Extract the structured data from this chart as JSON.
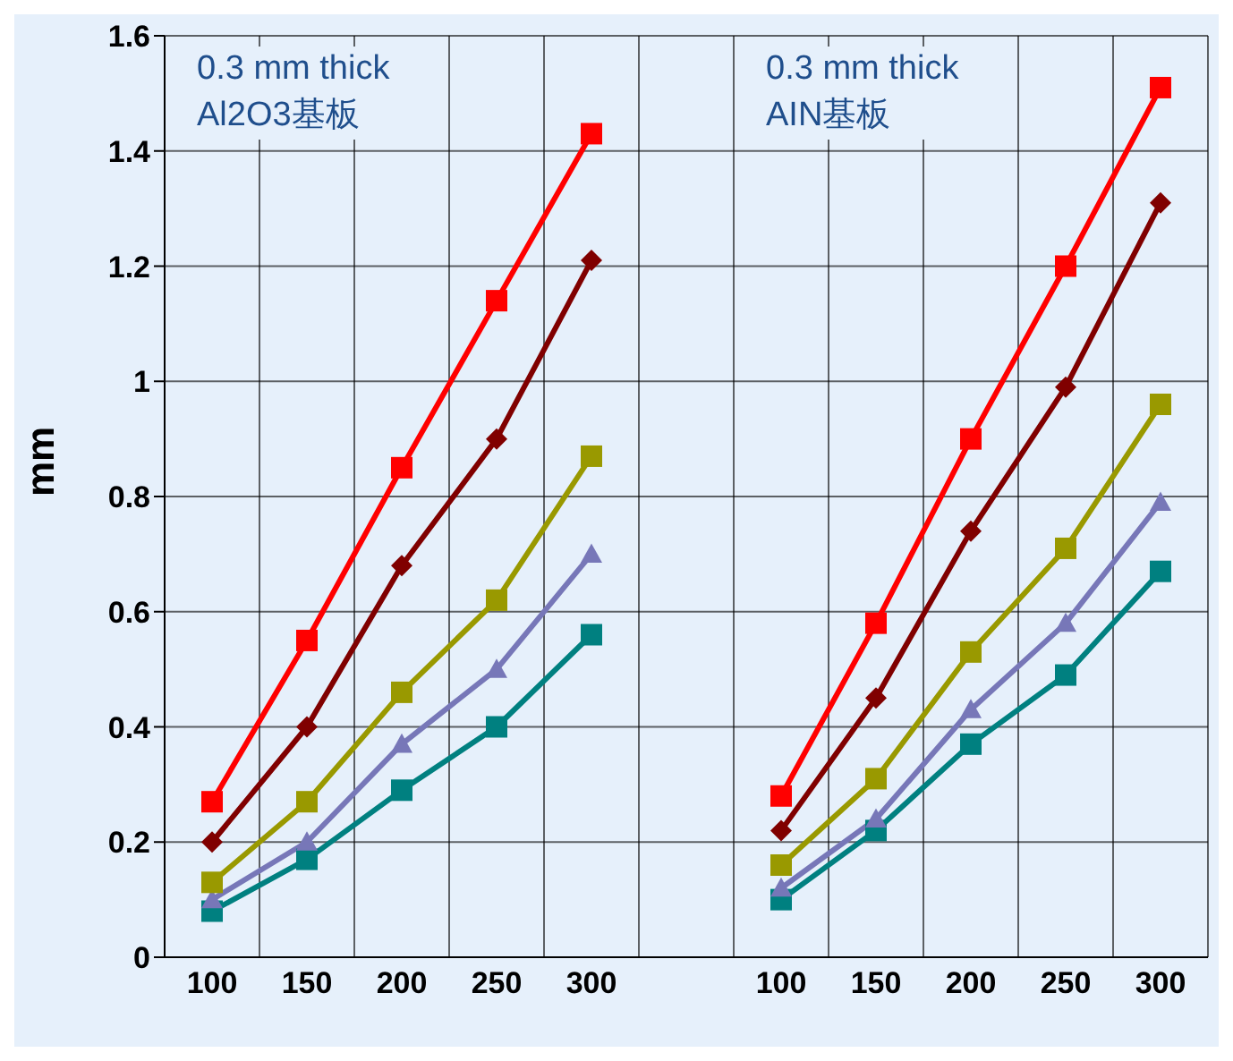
{
  "chart_data": {
    "type": "line",
    "ylabel": "mm",
    "categories": [
      "100",
      "150",
      "200",
      "250",
      "300",
      null,
      "100",
      "150",
      "200",
      "250",
      "300"
    ],
    "annotations": [
      "0.3 mm thick\nAl2O3基板",
      "0.3 mm thick\nAIN基板"
    ],
    "series": [
      {
        "color": "#ff0000",
        "marker": "square",
        "values": [
          0.27,
          0.55,
          0.85,
          1.14,
          1.43,
          null,
          0.28,
          0.58,
          0.9,
          1.2,
          1.51
        ]
      },
      {
        "color": "#800000",
        "marker": "diamond",
        "values": [
          0.2,
          0.4,
          0.68,
          0.9,
          1.21,
          null,
          0.22,
          0.45,
          0.74,
          0.99,
          1.31
        ]
      },
      {
        "color": "#999900",
        "marker": "square",
        "values": [
          0.13,
          0.27,
          0.46,
          0.62,
          0.87,
          null,
          0.16,
          0.31,
          0.53,
          0.71,
          0.96
        ]
      },
      {
        "color": "#7777b8",
        "marker": "triangle",
        "values": [
          0.1,
          0.2,
          0.37,
          0.5,
          0.7,
          null,
          0.12,
          0.24,
          0.43,
          0.58,
          0.79
        ]
      },
      {
        "color": "#008080",
        "marker": "square",
        "values": [
          0.08,
          0.17,
          0.29,
          0.4,
          0.56,
          null,
          0.1,
          0.22,
          0.37,
          0.49,
          0.67
        ]
      }
    ],
    "ylim": [
      0,
      1.6
    ],
    "yticks": [
      0,
      0.2,
      0.4,
      0.6,
      0.8,
      1,
      1.2,
      1.4,
      1.6
    ],
    "grid": true,
    "legend": false,
    "line_style": "solid"
  }
}
